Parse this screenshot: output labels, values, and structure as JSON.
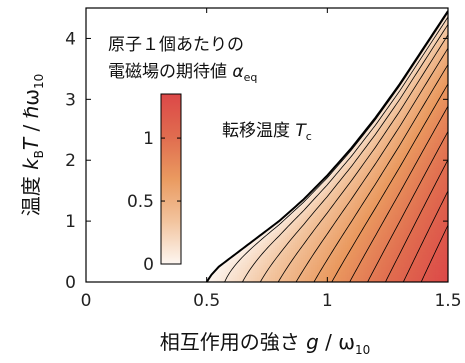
{
  "chart_data": {
    "type": "heatmap",
    "x": {
      "label_prefix": "相互作用の強さ ",
      "label_var": "g",
      "label_sep": " / ω",
      "label_sub": "10",
      "lim": [
        0,
        1.5
      ],
      "ticks": [
        "0",
        "0.5",
        "1",
        "1.5"
      ]
    },
    "y": {
      "label_prefix": "温度 ",
      "label_var": "k",
      "label_sub1": "B",
      "label_var2": "T",
      "label_sep": " / ℏω",
      "label_sub2": "10",
      "lim": [
        0,
        4.5
      ],
      "ticks": [
        "0",
        "1",
        "2",
        "3",
        "4"
      ]
    },
    "colorbar": {
      "title_line1": "原子１個あたりの",
      "title_line2_prefix": "電磁場の期待値 ",
      "title_var": "α",
      "title_sub": "eq",
      "lim": [
        0,
        1.35
      ],
      "ticks": [
        "0",
        "0.5",
        "1"
      ],
      "colors": [
        "#fdf6f1",
        "#f2c49e",
        "#ea9a60",
        "#e06c4f",
        "#dc4848"
      ]
    },
    "annotation": {
      "text_prefix": "転移温度 ",
      "var": "T",
      "sub": "c"
    },
    "transition_curve": {
      "g_c": 0.5,
      "points": [
        [
          0.5,
          0
        ],
        [
          0.52,
          0.12
        ],
        [
          0.55,
          0.25
        ],
        [
          0.6,
          0.4
        ],
        [
          0.7,
          0.7
        ],
        [
          0.8,
          1.0
        ],
        [
          0.9,
          1.35
        ],
        [
          1.0,
          1.75
        ],
        [
          1.1,
          2.2
        ],
        [
          1.2,
          2.7
        ],
        [
          1.3,
          3.25
        ],
        [
          1.4,
          3.85
        ],
        [
          1.5,
          4.45
        ]
      ]
    },
    "contour_levels": [
      0.1,
      0.2,
      0.3,
      0.4,
      0.5,
      0.6,
      0.7,
      0.8,
      0.9,
      1.0,
      1.1,
      1.2
    ]
  }
}
